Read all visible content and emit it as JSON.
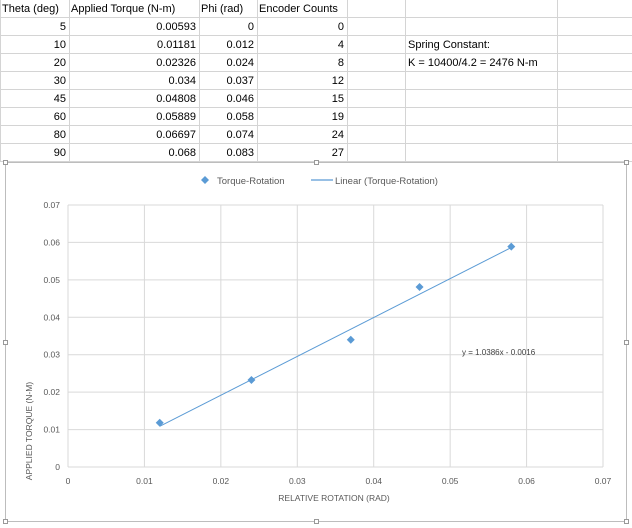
{
  "sheet": {
    "headers": [
      "Theta (deg)",
      "Applied Torque (N-m)",
      "Phi (rad)",
      "Encoder Counts"
    ],
    "rows": [
      [
        "5",
        "0.00593",
        "0",
        "0"
      ],
      [
        "10",
        "0.01181",
        "0.012",
        "4"
      ],
      [
        "20",
        "0.02326",
        "0.024",
        "8"
      ],
      [
        "30",
        "0.034",
        "0.037",
        "12"
      ],
      [
        "45",
        "0.04808",
        "0.046",
        "15"
      ],
      [
        "60",
        "0.05889",
        "0.058",
        "19"
      ],
      [
        "80",
        "0.06697",
        "0.074",
        "24"
      ],
      [
        "90",
        "0.068",
        "0.083",
        "27"
      ]
    ],
    "notes": {
      "spring_label": "Spring Constant:",
      "spring_value": "K = 10400/4.2 = 2476 N-m"
    }
  },
  "chart_data": {
    "type": "scatter",
    "title": "",
    "xlabel": "RELATIVE ROTATION (RAD)",
    "ylabel": "APPLIED TORQUE (N-M)",
    "xlim": [
      0,
      0.07
    ],
    "ylim": [
      0,
      0.07
    ],
    "x_ticks": [
      "0",
      "0.01",
      "0.02",
      "0.03",
      "0.04",
      "0.05",
      "0.06",
      "0.07"
    ],
    "y_ticks": [
      "0",
      "0.01",
      "0.02",
      "0.03",
      "0.04",
      "0.05",
      "0.06",
      "0.07"
    ],
    "grid": true,
    "legend_position": "top",
    "series": [
      {
        "name": "Torque-Rotation",
        "color": "#5b9bd5",
        "marker": "diamond",
        "x": [
          0.012,
          0.024,
          0.037,
          0.046,
          0.058
        ],
        "y": [
          0.01181,
          0.02326,
          0.034,
          0.04808,
          0.05889
        ]
      }
    ],
    "trendline": {
      "name": "Linear (Torque-Rotation)",
      "color": "#5b9bd5",
      "slope": 1.0386,
      "intercept": -0.0016,
      "x_range": [
        0.012,
        0.058
      ],
      "equation_label": "y = 1.0386x - 0.0016"
    }
  }
}
